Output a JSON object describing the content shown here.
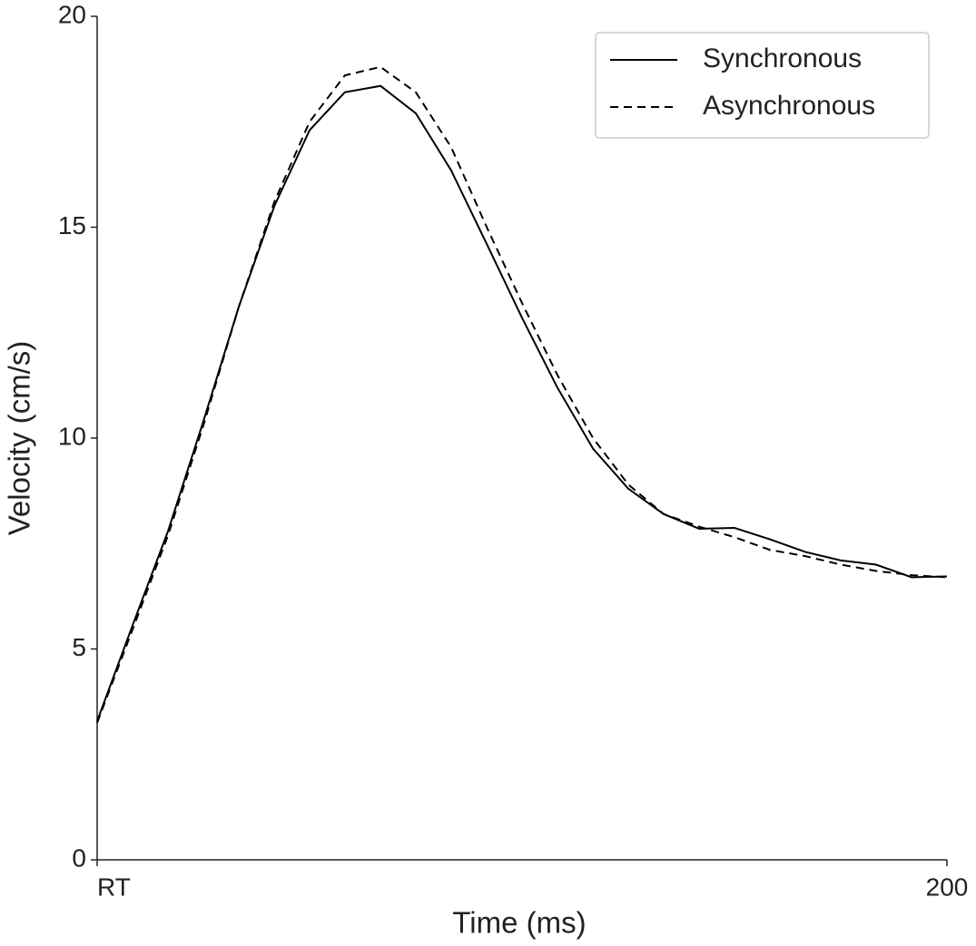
{
  "chart_data": {
    "type": "line",
    "xlabel": "Time (ms)",
    "ylabel": "Velocity (cm/s)",
    "x": [
      0,
      8.3,
      16.7,
      25,
      33.3,
      41.7,
      50,
      58.3,
      66.7,
      75,
      83.3,
      91.7,
      100,
      108.3,
      116.7,
      125,
      133.3,
      141.7,
      150,
      158.3,
      166.7,
      175,
      183.3,
      191.7,
      200
    ],
    "series": [
      {
        "name": "Synchronous",
        "color": "#000000",
        "dash": "none",
        "values": [
          3.29,
          5.55,
          7.8,
          10.4,
          13.1,
          15.5,
          17.3,
          18.2,
          18.35,
          17.7,
          16.35,
          14.6,
          12.85,
          11.2,
          9.75,
          8.8,
          8.2,
          7.85,
          7.87,
          7.6,
          7.3,
          7.1,
          7.0,
          6.7,
          6.72
        ]
      },
      {
        "name": "Asynchronous",
        "color": "#000000",
        "dash": "9 6",
        "values": [
          3.25,
          5.45,
          7.7,
          10.3,
          13.1,
          15.6,
          17.5,
          18.6,
          18.8,
          18.2,
          16.9,
          15.0,
          13.2,
          11.5,
          10.0,
          8.9,
          8.2,
          7.9,
          7.65,
          7.35,
          7.2,
          7.0,
          6.85,
          6.75,
          6.7
        ]
      }
    ],
    "xlim": [
      0,
      200
    ],
    "xticks": [
      {
        "value": 0,
        "label": "RT"
      },
      200
    ],
    "ylim": [
      0,
      20
    ],
    "yticks": [
      0,
      5,
      10,
      15,
      20
    ],
    "legend": "upper right",
    "grid": false
  }
}
